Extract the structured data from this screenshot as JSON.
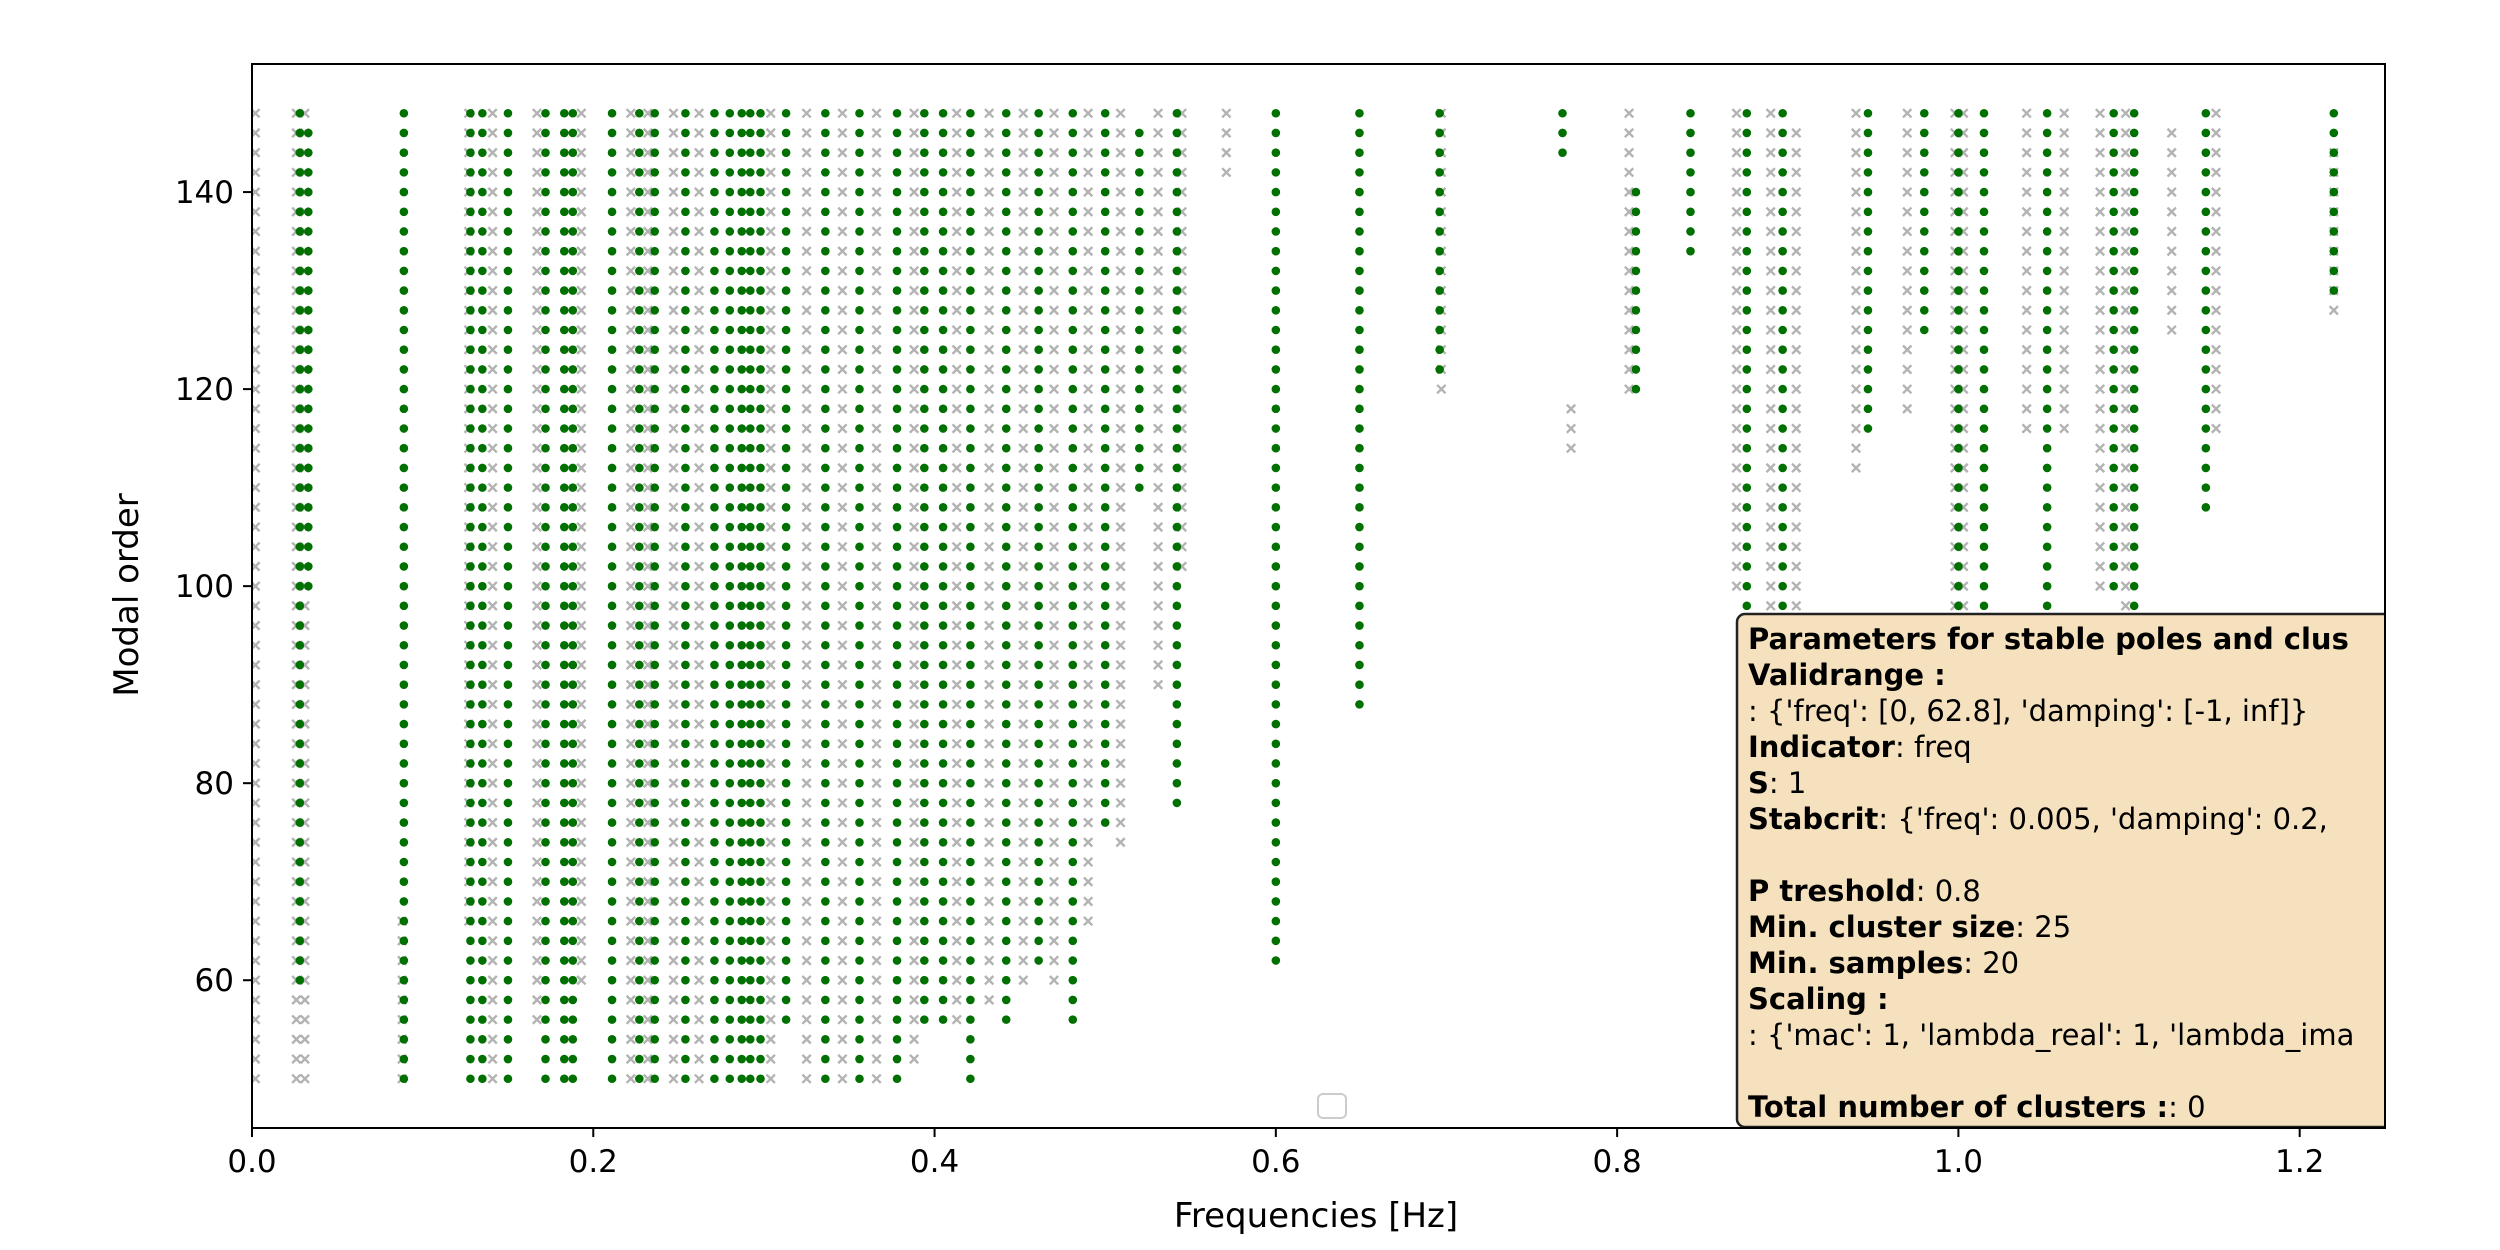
{
  "chart_data": {
    "type": "scatter",
    "xlabel": "Frequencies [Hz]",
    "ylabel": "Modal order",
    "xlim": [
      0.0,
      1.25
    ],
    "ylim": [
      45,
      153
    ],
    "x_ticks": [
      0.0,
      0.2,
      0.4,
      0.6,
      0.8,
      1.0,
      1.2
    ],
    "x_tick_labels": [
      "0.0",
      "0.2",
      "0.4",
      "0.6",
      "0.8",
      "1.0",
      "1.2"
    ],
    "y_ticks": [
      60,
      80,
      100,
      120,
      140
    ],
    "y_tick_labels": [
      "60",
      "80",
      "100",
      "120",
      "140"
    ],
    "grid": false,
    "legend": "empty legend box at bottom-center",
    "colors": {
      "stable": "#007000",
      "unstable": "#9a9a9a",
      "box_fill": "#f5e1bd",
      "box_edge": "#222222"
    },
    "order_step": 2,
    "series": [
      {
        "marker": "dot",
        "color": "#007000",
        "columns": [
          {
            "x": 0.028,
            "y": [
              60,
              148
            ]
          },
          {
            "x": 0.033,
            "y": [
              100,
              146
            ]
          },
          {
            "x": 0.089,
            "y": [
              50,
              148
            ]
          },
          {
            "x": 0.128,
            "y": [
              50,
              148
            ]
          },
          {
            "x": 0.135,
            "y": [
              50,
              148
            ]
          },
          {
            "x": 0.15,
            "y": [
              50,
              148
            ]
          },
          {
            "x": 0.172,
            "y": [
              50,
              148
            ]
          },
          {
            "x": 0.183,
            "y": [
              50,
              148
            ]
          },
          {
            "x": 0.188,
            "y": [
              50,
              148
            ]
          },
          {
            "x": 0.211,
            "y": [
              50,
              148
            ]
          },
          {
            "x": 0.227,
            "y": [
              50,
              148
            ]
          },
          {
            "x": 0.236,
            "y": [
              50,
              148
            ]
          },
          {
            "x": 0.254,
            "y": [
              50,
              148
            ]
          },
          {
            "x": 0.271,
            "y": [
              50,
              148
            ]
          },
          {
            "x": 0.28,
            "y": [
              50,
              148
            ]
          },
          {
            "x": 0.287,
            "y": [
              50,
              148
            ]
          },
          {
            "x": 0.292,
            "y": [
              50,
              148
            ]
          },
          {
            "x": 0.298,
            "y": [
              50,
              148
            ]
          },
          {
            "x": 0.313,
            "y": [
              56,
              148
            ]
          },
          {
            "x": 0.336,
            "y": [
              50,
              148
            ]
          },
          {
            "x": 0.356,
            "y": [
              50,
              148
            ]
          },
          {
            "x": 0.378,
            "y": [
              50,
              148
            ]
          },
          {
            "x": 0.394,
            "y": [
              56,
              148
            ]
          },
          {
            "x": 0.405,
            "y": [
              56,
              148
            ]
          },
          {
            "x": 0.421,
            "y": [
              50,
              148
            ]
          },
          {
            "x": 0.442,
            "y": [
              56,
              148
            ]
          },
          {
            "x": 0.461,
            "y": [
              62,
              148
            ]
          },
          {
            "x": 0.481,
            "y": [
              56,
              148
            ]
          },
          {
            "x": 0.5,
            "y": [
              76,
              148
            ]
          },
          {
            "x": 0.52,
            "y": [
              110,
              146
            ]
          },
          {
            "x": 0.542,
            "y": [
              78,
              148
            ]
          },
          {
            "x": 0.6,
            "y": [
              62,
              148
            ]
          },
          {
            "x": 0.649,
            "y": [
              88,
              148
            ]
          },
          {
            "x": 0.696,
            "y": [
              122,
              148
            ]
          },
          {
            "x": 0.768,
            "y": [
              144,
              148
            ]
          },
          {
            "x": 0.811,
            "y": [
              120,
              140
            ]
          },
          {
            "x": 0.843,
            "y": [
              134,
              148
            ]
          },
          {
            "x": 0.876,
            "y": [
              84,
              148
            ]
          },
          {
            "x": 0.897,
            "y": [
              84,
              148
            ]
          },
          {
            "x": 0.947,
            "y": [
              116,
              148
            ]
          },
          {
            "x": 0.98,
            "y": [
              126,
              148
            ]
          },
          {
            "x": 1.0,
            "y": [
              80,
              148
            ]
          },
          {
            "x": 1.015,
            "y": [
              80,
              148
            ]
          },
          {
            "x": 1.052,
            "y": [
              80,
              148
            ]
          },
          {
            "x": 1.091,
            "y": [
              100,
              148
            ]
          },
          {
            "x": 1.103,
            "y": [
              94,
              148
            ]
          },
          {
            "x": 1.145,
            "y": [
              108,
              148
            ]
          },
          {
            "x": 1.22,
            "y": [
              130,
              148
            ]
          }
        ]
      },
      {
        "marker": "x",
        "color": "#9a9a9a",
        "columns": [
          {
            "x": 0.002,
            "y": [
              50,
              148
            ]
          },
          {
            "x": 0.026,
            "y": [
              50,
              148
            ]
          },
          {
            "x": 0.031,
            "y": [
              50,
              148
            ]
          },
          {
            "x": 0.088,
            "y": [
              50,
              66
            ]
          },
          {
            "x": 0.127,
            "y": [
              66,
              148
            ]
          },
          {
            "x": 0.141,
            "y": [
              50,
              148
            ]
          },
          {
            "x": 0.167,
            "y": [
              56,
              148
            ]
          },
          {
            "x": 0.193,
            "y": [
              60,
              148
            ]
          },
          {
            "x": 0.222,
            "y": [
              50,
              148
            ]
          },
          {
            "x": 0.232,
            "y": [
              50,
              148
            ]
          },
          {
            "x": 0.247,
            "y": [
              50,
              148
            ]
          },
          {
            "x": 0.262,
            "y": [
              50,
              148
            ]
          },
          {
            "x": 0.304,
            "y": [
              50,
              148
            ]
          },
          {
            "x": 0.325,
            "y": [
              50,
              148
            ]
          },
          {
            "x": 0.346,
            "y": [
              50,
              148
            ]
          },
          {
            "x": 0.366,
            "y": [
              50,
              148
            ]
          },
          {
            "x": 0.388,
            "y": [
              52,
              148
            ]
          },
          {
            "x": 0.413,
            "y": [
              56,
              148
            ]
          },
          {
            "x": 0.432,
            "y": [
              58,
              148
            ]
          },
          {
            "x": 0.452,
            "y": [
              60,
              148
            ]
          },
          {
            "x": 0.47,
            "y": [
              60,
              148
            ]
          },
          {
            "x": 0.49,
            "y": [
              66,
              148
            ]
          },
          {
            "x": 0.509,
            "y": [
              74,
              148
            ]
          },
          {
            "x": 0.531,
            "y": [
              90,
              148
            ]
          },
          {
            "x": 0.545,
            "y": [
              102,
              148
            ]
          },
          {
            "x": 0.571,
            "y": [
              142,
              148
            ]
          },
          {
            "x": 0.697,
            "y": [
              120,
              148
            ]
          },
          {
            "x": 0.773,
            "y": [
              114,
              118
            ]
          },
          {
            "x": 0.807,
            "y": [
              120,
              148
            ]
          },
          {
            "x": 0.87,
            "y": [
              100,
              148
            ]
          },
          {
            "x": 0.89,
            "y": [
              92,
              148
            ]
          },
          {
            "x": 0.905,
            "y": [
              96,
              146
            ]
          },
          {
            "x": 0.94,
            "y": [
              112,
              148
            ]
          },
          {
            "x": 0.97,
            "y": [
              118,
              148
            ]
          },
          {
            "x": 0.998,
            "y": [
              80,
              148
            ]
          },
          {
            "x": 1.003,
            "y": [
              80,
              148
            ]
          },
          {
            "x": 1.04,
            "y": [
              116,
              148
            ]
          },
          {
            "x": 1.062,
            "y": [
              116,
              148
            ]
          },
          {
            "x": 1.083,
            "y": [
              100,
              148
            ]
          },
          {
            "x": 1.098,
            "y": [
              88,
              148
            ]
          },
          {
            "x": 1.125,
            "y": [
              126,
              146
            ]
          },
          {
            "x": 1.151,
            "y": [
              116,
              148
            ]
          },
          {
            "x": 1.22,
            "y": [
              128,
              144
            ]
          }
        ]
      }
    ],
    "annotation_box": {
      "title": "Parameters for stable poles and clus",
      "lines": [
        {
          "bold": "Validrange :",
          "text": ""
        },
        {
          "bold": "",
          "text": ": {'freq': [0, 62.8], 'damping': [-1, inf]}"
        },
        {
          "bold": "Indicator",
          "text": ": freq"
        },
        {
          "bold": "S",
          "text": ": 1"
        },
        {
          "bold": "Stabcrit",
          "text": ": {'freq': 0.005, 'damping': 0.2,"
        },
        {
          "bold": "",
          "text": ""
        },
        {
          "bold": "P treshold",
          "text": ": 0.8"
        },
        {
          "bold": "Min. cluster size",
          "text": ": 25"
        },
        {
          "bold": "Min. samples",
          "text": ": 20"
        },
        {
          "bold": "Scaling :",
          "text": ""
        },
        {
          "bold": "",
          "text": ": {'mac': 1, 'lambda_real': 1, 'lambda_ima"
        },
        {
          "bold": "",
          "text": ""
        },
        {
          "bold": "Total number of clusters :",
          "text": ": 0"
        }
      ]
    }
  }
}
